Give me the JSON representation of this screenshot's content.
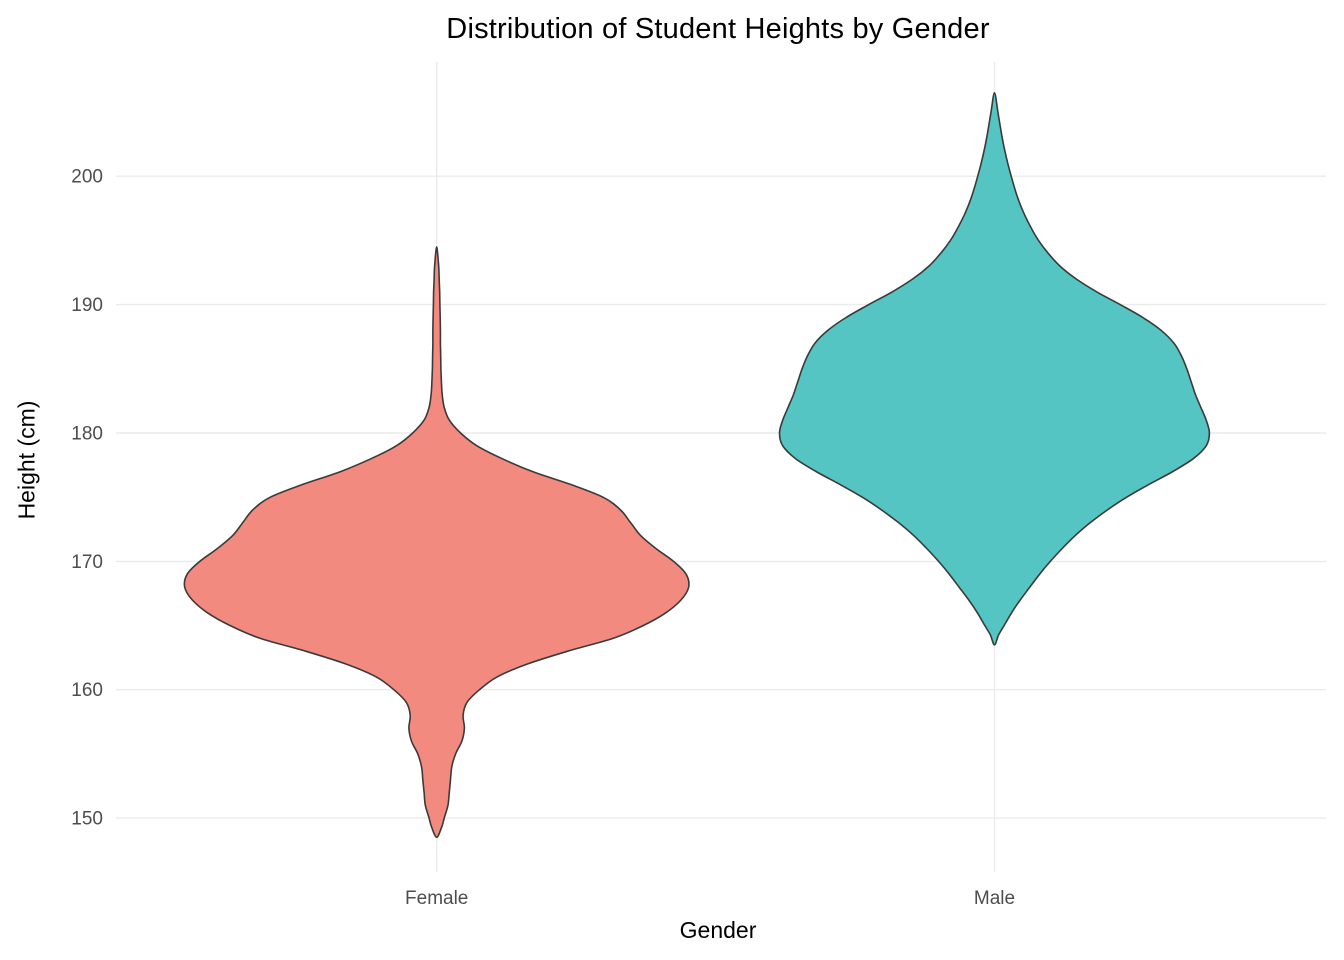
{
  "chart_data": {
    "type": "violin",
    "title": "Distribution of Student Heights by Gender",
    "xlabel": "Gender",
    "ylabel": "Height (cm)",
    "categories": [
      "Female",
      "Male"
    ],
    "yticks": [
      150,
      160,
      170,
      180,
      190,
      200
    ],
    "ylim": [
      145.8,
      208.9
    ],
    "grid": true,
    "legend": "none",
    "background": "#FFFFFF",
    "grid_color": "#EBEBEB",
    "axis_text_color": "#4D4D4D",
    "title_color": "#000000",
    "outline_color": "#3A3A3A",
    "series": [
      {
        "name": "Female",
        "fill": "#F38A80",
        "min": 148.5,
        "max": 194.5,
        "peak": 168,
        "max_width_rel": 1.0,
        "profile": [
          [
            148.5,
            0
          ],
          [
            149.3,
            0.02
          ],
          [
            150,
            0.03
          ],
          [
            151,
            0.045
          ],
          [
            152,
            0.05
          ],
          [
            153,
            0.055
          ],
          [
            154,
            0.06
          ],
          [
            155,
            0.075
          ],
          [
            156,
            0.1
          ],
          [
            157,
            0.11
          ],
          [
            158,
            0.105
          ],
          [
            159,
            0.12
          ],
          [
            160,
            0.17
          ],
          [
            161,
            0.24
          ],
          [
            162,
            0.36
          ],
          [
            163,
            0.52
          ],
          [
            164,
            0.7
          ],
          [
            165,
            0.82
          ],
          [
            166,
            0.91
          ],
          [
            167,
            0.97
          ],
          [
            168,
            1.0
          ],
          [
            169,
            0.99
          ],
          [
            170,
            0.94
          ],
          [
            171,
            0.87
          ],
          [
            172,
            0.81
          ],
          [
            173,
            0.77
          ],
          [
            174,
            0.73
          ],
          [
            175,
            0.66
          ],
          [
            176,
            0.53
          ],
          [
            177,
            0.38
          ],
          [
            178,
            0.26
          ],
          [
            179,
            0.16
          ],
          [
            180,
            0.095
          ],
          [
            181,
            0.05
          ],
          [
            182,
            0.03
          ],
          [
            183,
            0.022
          ],
          [
            184,
            0.019
          ],
          [
            185,
            0.017
          ],
          [
            186,
            0.016
          ],
          [
            187,
            0.015
          ],
          [
            188,
            0.015
          ],
          [
            189,
            0.014
          ],
          [
            190,
            0.013
          ],
          [
            191,
            0.012
          ],
          [
            192,
            0.01
          ],
          [
            193,
            0.008
          ],
          [
            194.5,
            0
          ]
        ]
      },
      {
        "name": "Male",
        "fill": "#54C5C2",
        "min": 163.5,
        "max": 206.5,
        "peak": 180,
        "max_width_rel": 0.853,
        "profile": [
          [
            163.5,
            0
          ],
          [
            164.3,
            0.02
          ],
          [
            165,
            0.045
          ],
          [
            166,
            0.08
          ],
          [
            167,
            0.12
          ],
          [
            168,
            0.165
          ],
          [
            169,
            0.21
          ],
          [
            170,
            0.26
          ],
          [
            171,
            0.315
          ],
          [
            172,
            0.375
          ],
          [
            173,
            0.445
          ],
          [
            174,
            0.525
          ],
          [
            175,
            0.615
          ],
          [
            176,
            0.72
          ],
          [
            177,
            0.83
          ],
          [
            178,
            0.925
          ],
          [
            179,
            0.985
          ],
          [
            180,
            1.0
          ],
          [
            181,
            0.985
          ],
          [
            182,
            0.96
          ],
          [
            183,
            0.935
          ],
          [
            184,
            0.915
          ],
          [
            185,
            0.895
          ],
          [
            186,
            0.87
          ],
          [
            187,
            0.835
          ],
          [
            188,
            0.775
          ],
          [
            189,
            0.69
          ],
          [
            190,
            0.585
          ],
          [
            191,
            0.475
          ],
          [
            192,
            0.38
          ],
          [
            193,
            0.305
          ],
          [
            194,
            0.25
          ],
          [
            195,
            0.205
          ],
          [
            196,
            0.17
          ],
          [
            197,
            0.14
          ],
          [
            198,
            0.115
          ],
          [
            199,
            0.095
          ],
          [
            200,
            0.078
          ],
          [
            201,
            0.062
          ],
          [
            202,
            0.048
          ],
          [
            203,
            0.036
          ],
          [
            204,
            0.026
          ],
          [
            205,
            0.016
          ],
          [
            206.5,
            0
          ]
        ]
      }
    ]
  }
}
